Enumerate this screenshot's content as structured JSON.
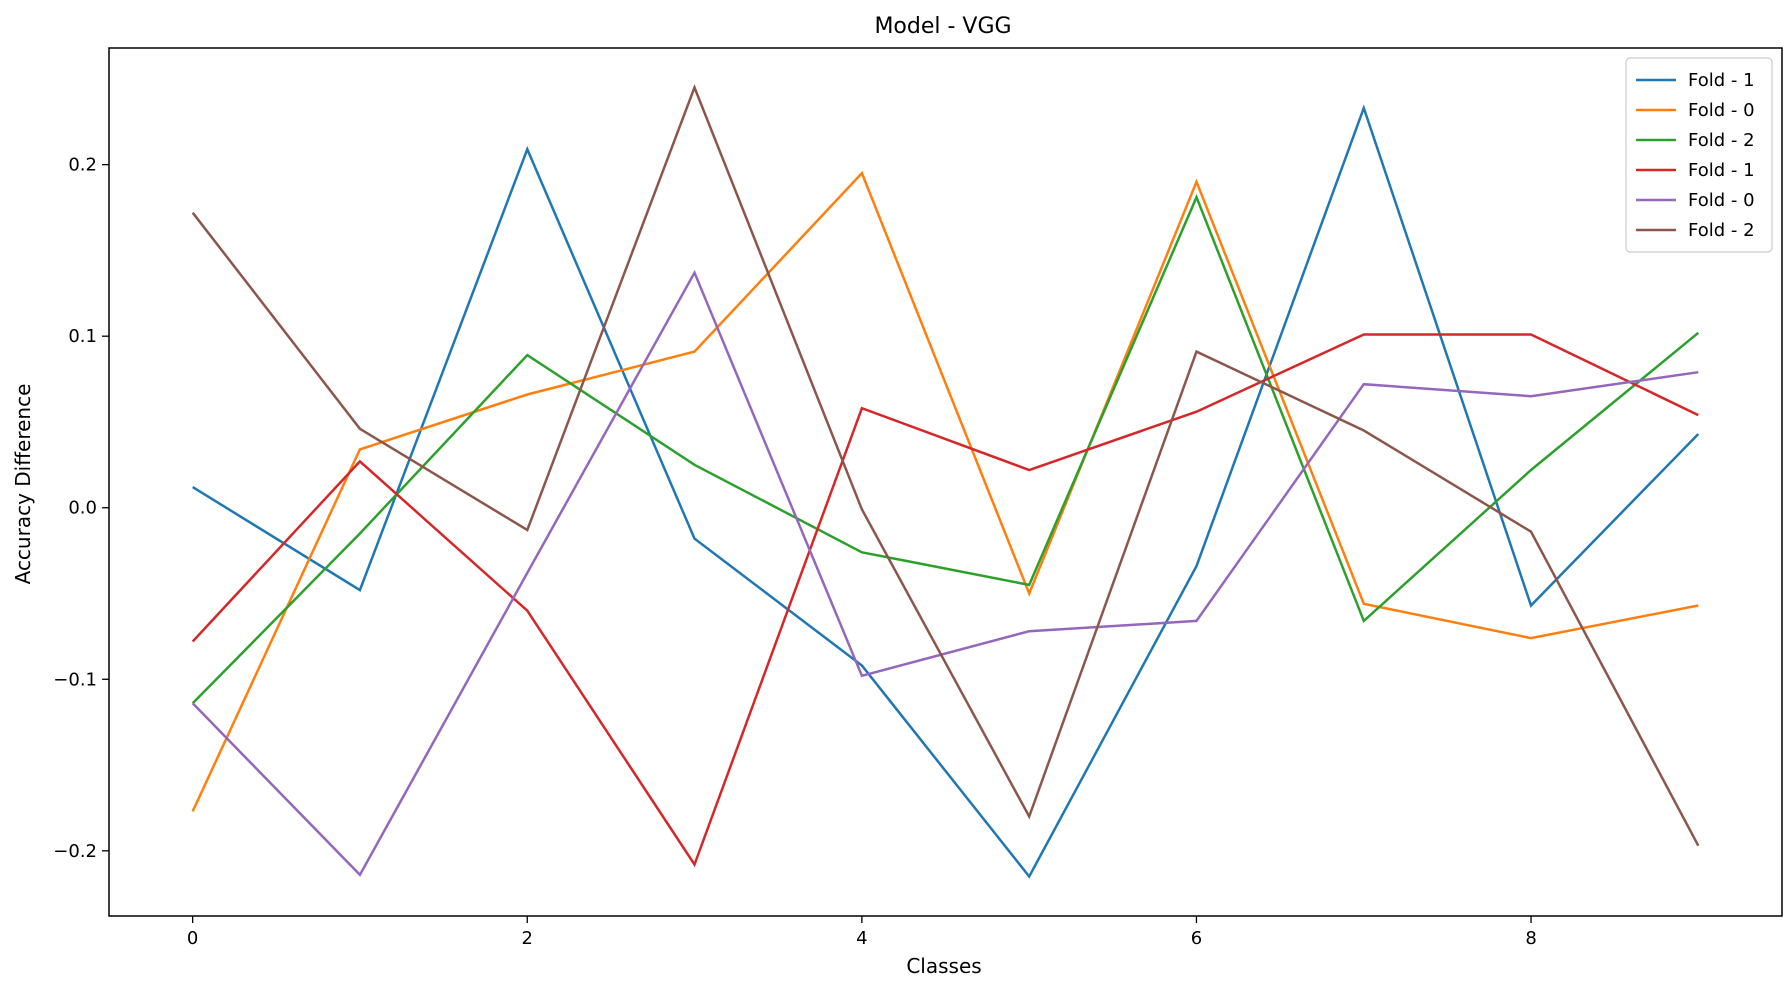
{
  "chart_data": {
    "type": "line",
    "title": "Model - VGG",
    "xlabel": "Classes",
    "ylabel": "Accuracy Difference",
    "xlim": [
      -0.5,
      9.5
    ],
    "ylim": [
      -0.238,
      0.268
    ],
    "x": [
      0,
      1,
      2,
      3,
      4,
      5,
      6,
      7,
      8,
      9
    ],
    "x_ticks": [
      0,
      2,
      4,
      6,
      8
    ],
    "x_tick_labels": [
      "0",
      "2",
      "4",
      "6",
      "8"
    ],
    "y_ticks": [
      -0.2,
      -0.1,
      0.0,
      0.1,
      0.2
    ],
    "y_tick_labels": [
      "−0.2",
      "−0.1",
      "0.0",
      "0.1",
      "0.2"
    ],
    "grid": false,
    "legend_position": "top-right",
    "series": [
      {
        "name": "Fold - 1",
        "color": "#1f77b4",
        "values": [
          0.012,
          -0.048,
          0.209,
          -0.018,
          -0.092,
          -0.215,
          -0.034,
          0.233,
          -0.057,
          0.043
        ]
      },
      {
        "name": "Fold - 0",
        "color": "#ff7f0e",
        "values": [
          -0.177,
          0.034,
          0.066,
          0.091,
          0.195,
          -0.05,
          0.19,
          -0.056,
          -0.076,
          -0.057
        ]
      },
      {
        "name": "Fold - 2",
        "color": "#2ca02c",
        "values": [
          -0.114,
          -0.015,
          0.089,
          0.025,
          -0.026,
          -0.045,
          0.181,
          -0.066,
          0.022,
          0.102
        ]
      },
      {
        "name": "Fold - 1",
        "color": "#d62728",
        "values": [
          -0.078,
          0.027,
          -0.06,
          -0.208,
          0.058,
          0.022,
          0.056,
          0.101,
          0.101,
          0.054
        ]
      },
      {
        "name": "Fold - 0",
        "color": "#9467bd",
        "values": [
          -0.114,
          -0.214,
          -0.038,
          0.137,
          -0.098,
          -0.072,
          -0.066,
          0.072,
          0.065,
          0.079
        ]
      },
      {
        "name": "Fold - 2",
        "color": "#8c564b",
        "values": [
          0.172,
          0.046,
          -0.013,
          0.245,
          -0.001,
          -0.18,
          0.091,
          0.045,
          -0.014,
          -0.197
        ]
      }
    ]
  }
}
